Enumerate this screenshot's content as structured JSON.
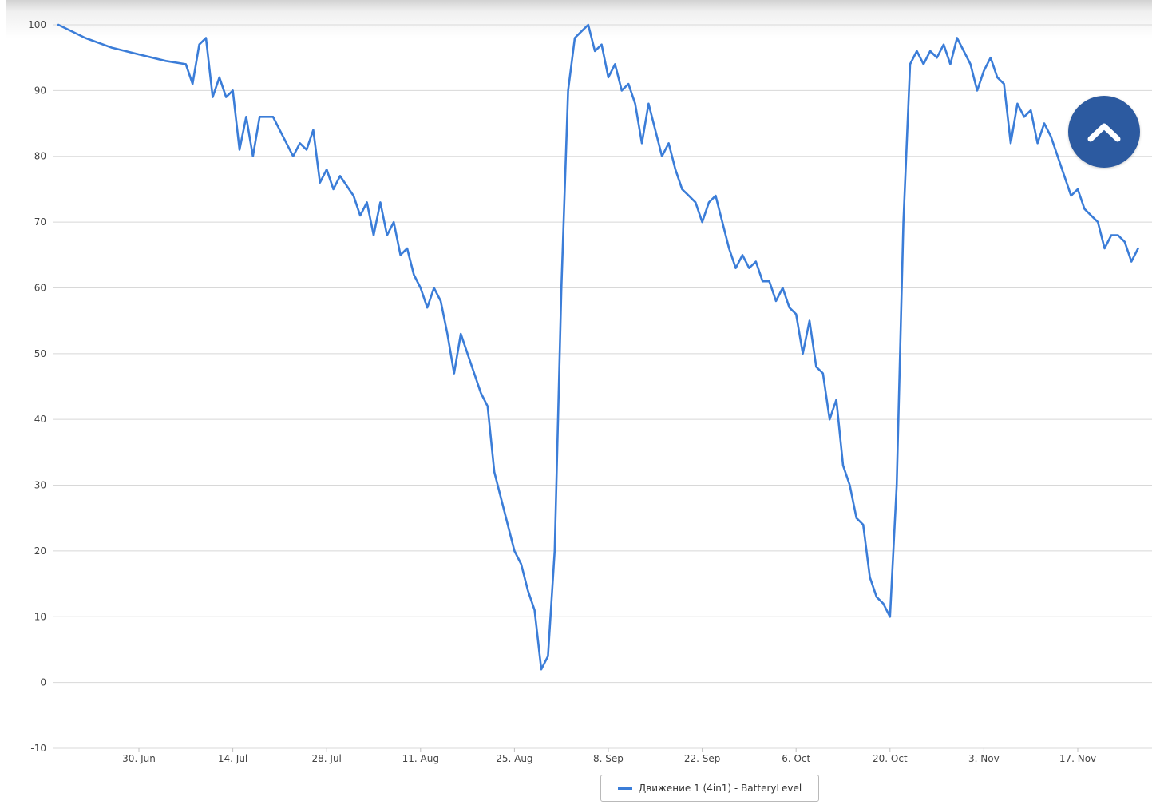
{
  "chart_data": {
    "type": "line",
    "title": "",
    "xlabel": "",
    "ylabel": "",
    "ylim": [
      -10,
      100
    ],
    "yticks": [
      "100",
      "90",
      "80",
      "70",
      "60",
      "50",
      "40",
      "30",
      "20",
      "10",
      "0",
      "-10"
    ],
    "xticks": [
      "30. Jun",
      "14. Jul",
      "28. Jul",
      "11. Aug",
      "25. Aug",
      "8. Sep",
      "22. Sep",
      "6. Oct",
      "20. Oct",
      "3. Nov",
      "17. Nov"
    ],
    "grid": true,
    "legend_position": "bottom-center",
    "series": [
      {
        "name": "Движение 1 (4in1) - BatteryLevel",
        "color": "#3b7dd8",
        "points": [
          [
            "18. Jun",
            100
          ],
          [
            "22. Jun",
            98
          ],
          [
            "26. Jun",
            96.5
          ],
          [
            "30. Jun",
            95.5
          ],
          [
            "4. Jul",
            94.5
          ],
          [
            "7. Jul",
            94
          ],
          [
            "8. Jul",
            91
          ],
          [
            "9. Jul",
            97
          ],
          [
            "10. Jul",
            98
          ],
          [
            "11. Jul",
            89
          ],
          [
            "12. Jul",
            92
          ],
          [
            "13. Jul",
            89
          ],
          [
            "14. Jul",
            90
          ],
          [
            "15. Jul",
            81
          ],
          [
            "16. Jul",
            86
          ],
          [
            "17. Jul",
            80
          ],
          [
            "18. Jul",
            86
          ],
          [
            "20. Jul",
            86
          ],
          [
            "21. Jul",
            84
          ],
          [
            "23. Jul",
            80
          ],
          [
            "24. Jul",
            82
          ],
          [
            "25. Jul",
            81
          ],
          [
            "26. Jul",
            84
          ],
          [
            "27. Jul",
            76
          ],
          [
            "28. Jul",
            78
          ],
          [
            "29. Jul",
            75
          ],
          [
            "30. Jul",
            77
          ],
          [
            "1. Aug",
            74
          ],
          [
            "2. Aug",
            71
          ],
          [
            "3. Aug",
            73
          ],
          [
            "4. Aug",
            68
          ],
          [
            "5. Aug",
            73
          ],
          [
            "6. Aug",
            68
          ],
          [
            "7. Aug",
            70
          ],
          [
            "8. Aug",
            65
          ],
          [
            "9. Aug",
            66
          ],
          [
            "10. Aug",
            62
          ],
          [
            "11. Aug",
            60
          ],
          [
            "12. Aug",
            57
          ],
          [
            "13. Aug",
            60
          ],
          [
            "14. Aug",
            58
          ],
          [
            "15. Aug",
            53
          ],
          [
            "16. Aug",
            47
          ],
          [
            "17. Aug",
            53
          ],
          [
            "18. Aug",
            50
          ],
          [
            "19. Aug",
            47
          ],
          [
            "20. Aug",
            44
          ],
          [
            "21. Aug",
            42
          ],
          [
            "22. Aug",
            32
          ],
          [
            "23. Aug",
            28
          ],
          [
            "24. Aug",
            24
          ],
          [
            "25. Aug",
            20
          ],
          [
            "26. Aug",
            18
          ],
          [
            "27. Aug",
            14
          ],
          [
            "28. Aug",
            11
          ],
          [
            "29. Aug",
            2
          ],
          [
            "30. Aug",
            4
          ],
          [
            "31. Aug",
            20
          ],
          [
            "1. Sep",
            60
          ],
          [
            "2. Sep",
            90
          ],
          [
            "3. Sep",
            98
          ],
          [
            "4. Sep",
            99
          ],
          [
            "5. Sep",
            100
          ],
          [
            "6. Sep",
            96
          ],
          [
            "7. Sep",
            97
          ],
          [
            "8. Sep",
            92
          ],
          [
            "9. Sep",
            94
          ],
          [
            "10. Sep",
            90
          ],
          [
            "11. Sep",
            91
          ],
          [
            "12. Sep",
            88
          ],
          [
            "13. Sep",
            82
          ],
          [
            "14. Sep",
            88
          ],
          [
            "15. Sep",
            84
          ],
          [
            "16. Sep",
            80
          ],
          [
            "17. Sep",
            82
          ],
          [
            "18. Sep",
            78
          ],
          [
            "19. Sep",
            75
          ],
          [
            "20. Sep",
            74
          ],
          [
            "21. Sep",
            73
          ],
          [
            "22. Sep",
            70
          ],
          [
            "23. Sep",
            73
          ],
          [
            "24. Sep",
            74
          ],
          [
            "25. Sep",
            70
          ],
          [
            "26. Sep",
            66
          ],
          [
            "27. Sep",
            63
          ],
          [
            "28. Sep",
            65
          ],
          [
            "29. Sep",
            63
          ],
          [
            "30. Sep",
            64
          ],
          [
            "1. Oct",
            61
          ],
          [
            "2. Oct",
            61
          ],
          [
            "3. Oct",
            58
          ],
          [
            "4. Oct",
            60
          ],
          [
            "5. Oct",
            57
          ],
          [
            "6. Oct",
            56
          ],
          [
            "7. Oct",
            50
          ],
          [
            "8. Oct",
            55
          ],
          [
            "9. Oct",
            48
          ],
          [
            "10. Oct",
            47
          ],
          [
            "11. Oct",
            40
          ],
          [
            "12. Oct",
            43
          ],
          [
            "13. Oct",
            33
          ],
          [
            "14. Oct",
            30
          ],
          [
            "15. Oct",
            25
          ],
          [
            "16. Oct",
            24
          ],
          [
            "17. Oct",
            16
          ],
          [
            "18. Oct",
            13
          ],
          [
            "19. Oct",
            12
          ],
          [
            "20. Oct",
            10
          ],
          [
            "21. Oct",
            30
          ],
          [
            "22. Oct",
            70
          ],
          [
            "23. Oct",
            94
          ],
          [
            "24. Oct",
            96
          ],
          [
            "25. Oct",
            94
          ],
          [
            "26. Oct",
            96
          ],
          [
            "27. Oct",
            95
          ],
          [
            "28. Oct",
            97
          ],
          [
            "29. Oct",
            94
          ],
          [
            "30. Oct",
            98
          ],
          [
            "31. Oct",
            96
          ],
          [
            "1. Nov",
            94
          ],
          [
            "2. Nov",
            90
          ],
          [
            "3. Nov",
            93
          ],
          [
            "4. Nov",
            95
          ],
          [
            "5. Nov",
            92
          ],
          [
            "6. Nov",
            91
          ],
          [
            "7. Nov",
            82
          ],
          [
            "8. Nov",
            88
          ],
          [
            "9. Nov",
            86
          ],
          [
            "10. Nov",
            87
          ],
          [
            "11. Nov",
            82
          ],
          [
            "12. Nov",
            85
          ],
          [
            "13. Nov",
            83
          ],
          [
            "14. Nov",
            80
          ],
          [
            "15. Nov",
            77
          ],
          [
            "16. Nov",
            74
          ],
          [
            "17. Nov",
            75
          ],
          [
            "18. Nov",
            72
          ],
          [
            "19. Nov",
            71
          ],
          [
            "20. Nov",
            70
          ],
          [
            "21. Nov",
            66
          ],
          [
            "22. Nov",
            68
          ],
          [
            "23. Nov",
            68
          ],
          [
            "24. Nov",
            67
          ],
          [
            "25. Nov",
            64
          ],
          [
            "26. Nov",
            66
          ]
        ]
      }
    ]
  },
  "legend": {
    "label": "Движение 1 (4in1) - BatteryLevel"
  },
  "scroll_top": {
    "icon": "chevron-up-icon",
    "color": "#2c5aa0"
  }
}
